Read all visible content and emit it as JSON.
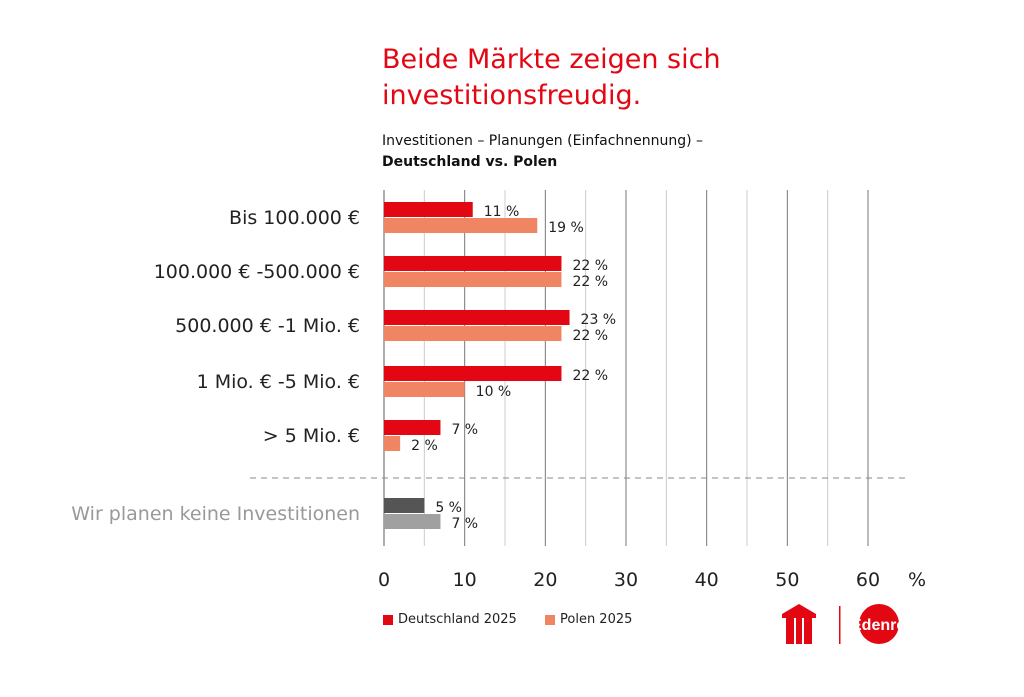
{
  "title": "Beide Märkte zeigen sich investitionsfreudig.",
  "subtitle_line1": "Investitionen – Planungen (Einfachnennung) –",
  "subtitle_line2": "Deutschland vs. Polen",
  "colors": {
    "deutschland": "#e30613",
    "polen": "#f08563",
    "none_de": "#555555",
    "none_pl": "#a0a0a0",
    "title": "#e30613"
  },
  "chart_data": {
    "type": "bar",
    "orientation": "horizontal",
    "categories": [
      "Bis 100.000 €",
      "100.000 € -500.000 €",
      "500.000 € -1 Mio. €",
      "1 Mio. € -5 Mio. €",
      "> 5 Mio. €",
      "Wir planen keine Investitionen"
    ],
    "series": [
      {
        "name": "Deutschland 2025",
        "values": [
          11,
          22,
          23,
          22,
          7,
          5
        ],
        "labels": [
          "11 %",
          "22 %",
          "23 %",
          "22 %",
          "7 %",
          "5 %"
        ]
      },
      {
        "name": "Polen 2025",
        "values": [
          19,
          22,
          22,
          10,
          2,
          7
        ],
        "labels": [
          "19 %",
          "22 %",
          "22 %",
          "10 %",
          "2 %",
          "7 %"
        ]
      }
    ],
    "xlim": [
      0,
      60
    ],
    "xticks": [
      "0",
      "10",
      "20",
      "30",
      "40",
      "50",
      "60"
    ],
    "xunit": "%",
    "grid": true,
    "legend": "bottom-left"
  },
  "logos": {
    "uta": "UTA",
    "edenred": "Edenred"
  }
}
